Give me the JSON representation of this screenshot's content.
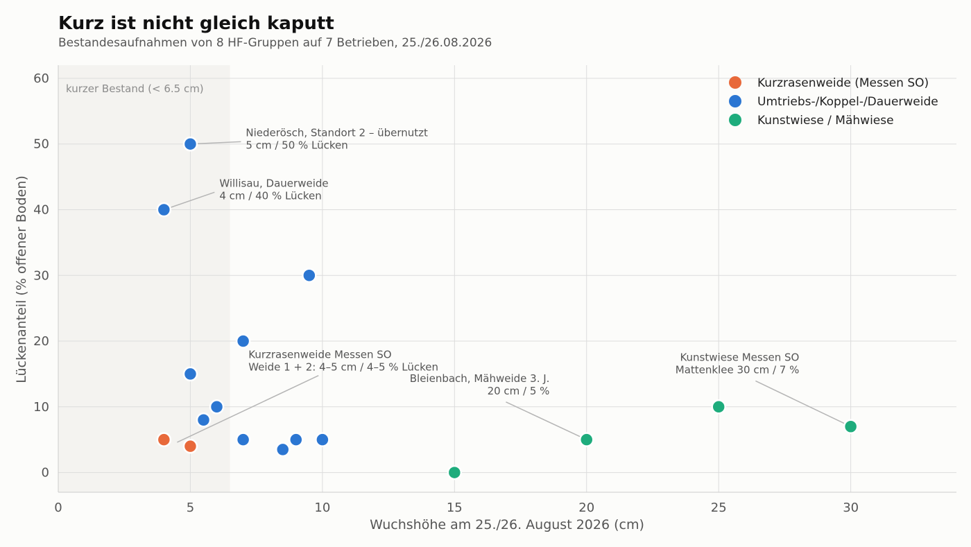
{
  "chart_data": {
    "type": "scatter",
    "title": "Kurz ist nicht gleich kaputt",
    "subtitle": "Bestandesaufnahmen von 8 HF-Gruppen auf 7 Betrieben, 25./26.08.2026",
    "xlabel": "Wuchshöhe am 25./26. August 2026 (cm)",
    "ylabel": "Lückenanteil (% offener Boden)",
    "xlim": [
      0,
      34
    ],
    "ylim": [
      -3,
      62
    ],
    "xticks": [
      0,
      5,
      10,
      15,
      20,
      25,
      30
    ],
    "yticks": [
      0,
      10,
      20,
      30,
      40,
      50,
      60
    ],
    "grid": true,
    "legend_position": "top-right",
    "shaded_region": {
      "x_from": 0,
      "x_to": 6.5,
      "label": "kurzer Bestand (< 6.5 cm)"
    },
    "series": [
      {
        "name": "Kurzrasenweide (Messen SO)",
        "color": "#e8693a",
        "points": [
          {
            "x": 4,
            "y": 5
          },
          {
            "x": 5,
            "y": 4
          }
        ]
      },
      {
        "name": "Umtriebs-/Koppel-/Dauerweide",
        "color": "#2b76d2",
        "points": [
          {
            "x": 5,
            "y": 50
          },
          {
            "x": 4,
            "y": 40
          },
          {
            "x": 9.5,
            "y": 30
          },
          {
            "x": 7,
            "y": 20
          },
          {
            "x": 5,
            "y": 15
          },
          {
            "x": 6,
            "y": 10
          },
          {
            "x": 5.5,
            "y": 8
          },
          {
            "x": 7,
            "y": 5
          },
          {
            "x": 8.5,
            "y": 3.5
          },
          {
            "x": 9,
            "y": 5
          },
          {
            "x": 10,
            "y": 5
          }
        ]
      },
      {
        "name": "Kunstwiese / Mähwiese",
        "color": "#1eac7c",
        "points": [
          {
            "x": 15,
            "y": 0
          },
          {
            "x": 20,
            "y": 5
          },
          {
            "x": 25,
            "y": 10
          },
          {
            "x": 30,
            "y": 7
          }
        ]
      }
    ],
    "annotations": [
      {
        "lines": [
          "Niederösch, Standort 2 – übernutzt",
          "5 cm / 50 % Lücken"
        ],
        "point": {
          "x": 5,
          "y": 50
        },
        "text_at": {
          "x": 7.1,
          "y": 51.2
        },
        "align": "start"
      },
      {
        "lines": [
          "Willisau, Dauerweide",
          "4 cm / 40 % Lücken"
        ],
        "point": {
          "x": 4,
          "y": 40
        },
        "text_at": {
          "x": 6.1,
          "y": 43.5
        },
        "align": "start"
      },
      {
        "lines": [
          "Kurzrasenweide Messen SO",
          "Weide 1 + 2:  4–5 cm / 4–5 % Lücken"
        ],
        "point": {
          "x": 4.5,
          "y": 4.6
        },
        "text_at": {
          "x": 7.2,
          "y": 17.4
        },
        "align": "start"
      },
      {
        "lines": [
          "Bleienbach, Mähweide 3. J.",
          "20 cm / 5 %"
        ],
        "point": {
          "x": 20,
          "y": 5
        },
        "text_at": {
          "x": 18.6,
          "y": 13.8
        },
        "align": "end"
      },
      {
        "lines": [
          "Kunstwiese Messen SO",
          "Mattenklee 30 cm / 7 %"
        ],
        "point": {
          "x": 30,
          "y": 7
        },
        "text_at": {
          "x": 28.05,
          "y": 17.0
        },
        "align": "end"
      }
    ]
  }
}
